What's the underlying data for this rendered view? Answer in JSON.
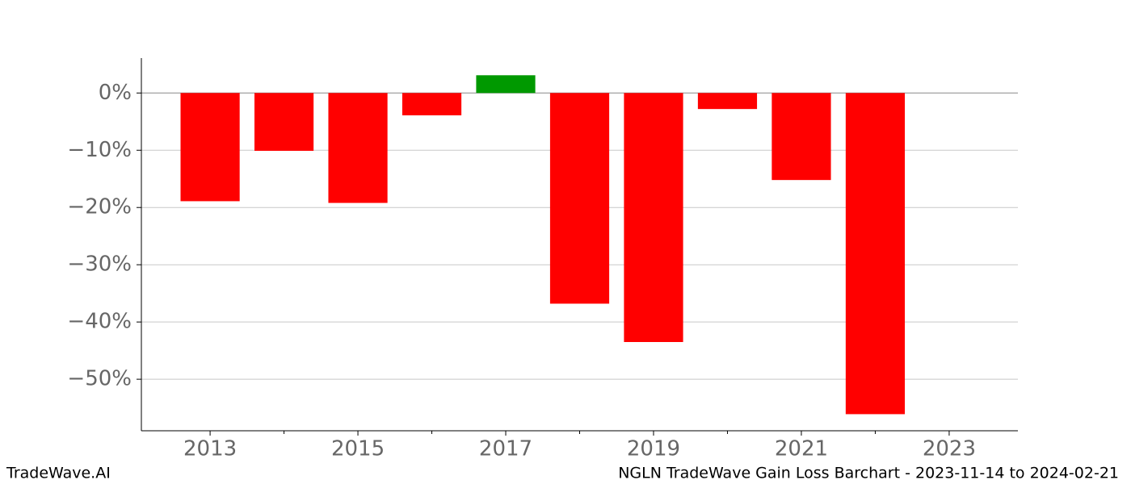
{
  "chart_data": {
    "type": "bar",
    "title": "NGLN TradeWave Gain Loss Barchart - 2023-11-14 to 2024-02-21",
    "watermark": "TradeWave.AI",
    "x": [
      2013,
      2014,
      2015,
      2016,
      2017,
      2018,
      2019,
      2020,
      2021,
      2022
    ],
    "values": [
      -18.9,
      -10.1,
      -19.2,
      -3.9,
      3.1,
      -36.8,
      -43.5,
      -2.8,
      -15.2,
      -56.1
    ],
    "positive_color": "#009900",
    "negative_color": "#ff0000",
    "xlim": [
      2012.07,
      2023.93
    ],
    "xticks": [
      2013,
      2015,
      2017,
      2019,
      2021,
      2023
    ],
    "x_minor_ticks": [
      2014,
      2016,
      2018,
      2020,
      2022
    ],
    "ylim": [
      -59.0,
      6.1
    ],
    "yticks": [
      {
        "value": 0,
        "label": "0%"
      },
      {
        "value": -10,
        "label": "−10%"
      },
      {
        "value": -20,
        "label": "−20%"
      },
      {
        "value": -30,
        "label": "−30%"
      },
      {
        "value": -40,
        "label": "−40%"
      },
      {
        "value": -50,
        "label": "−50%"
      }
    ],
    "grid": true
  }
}
